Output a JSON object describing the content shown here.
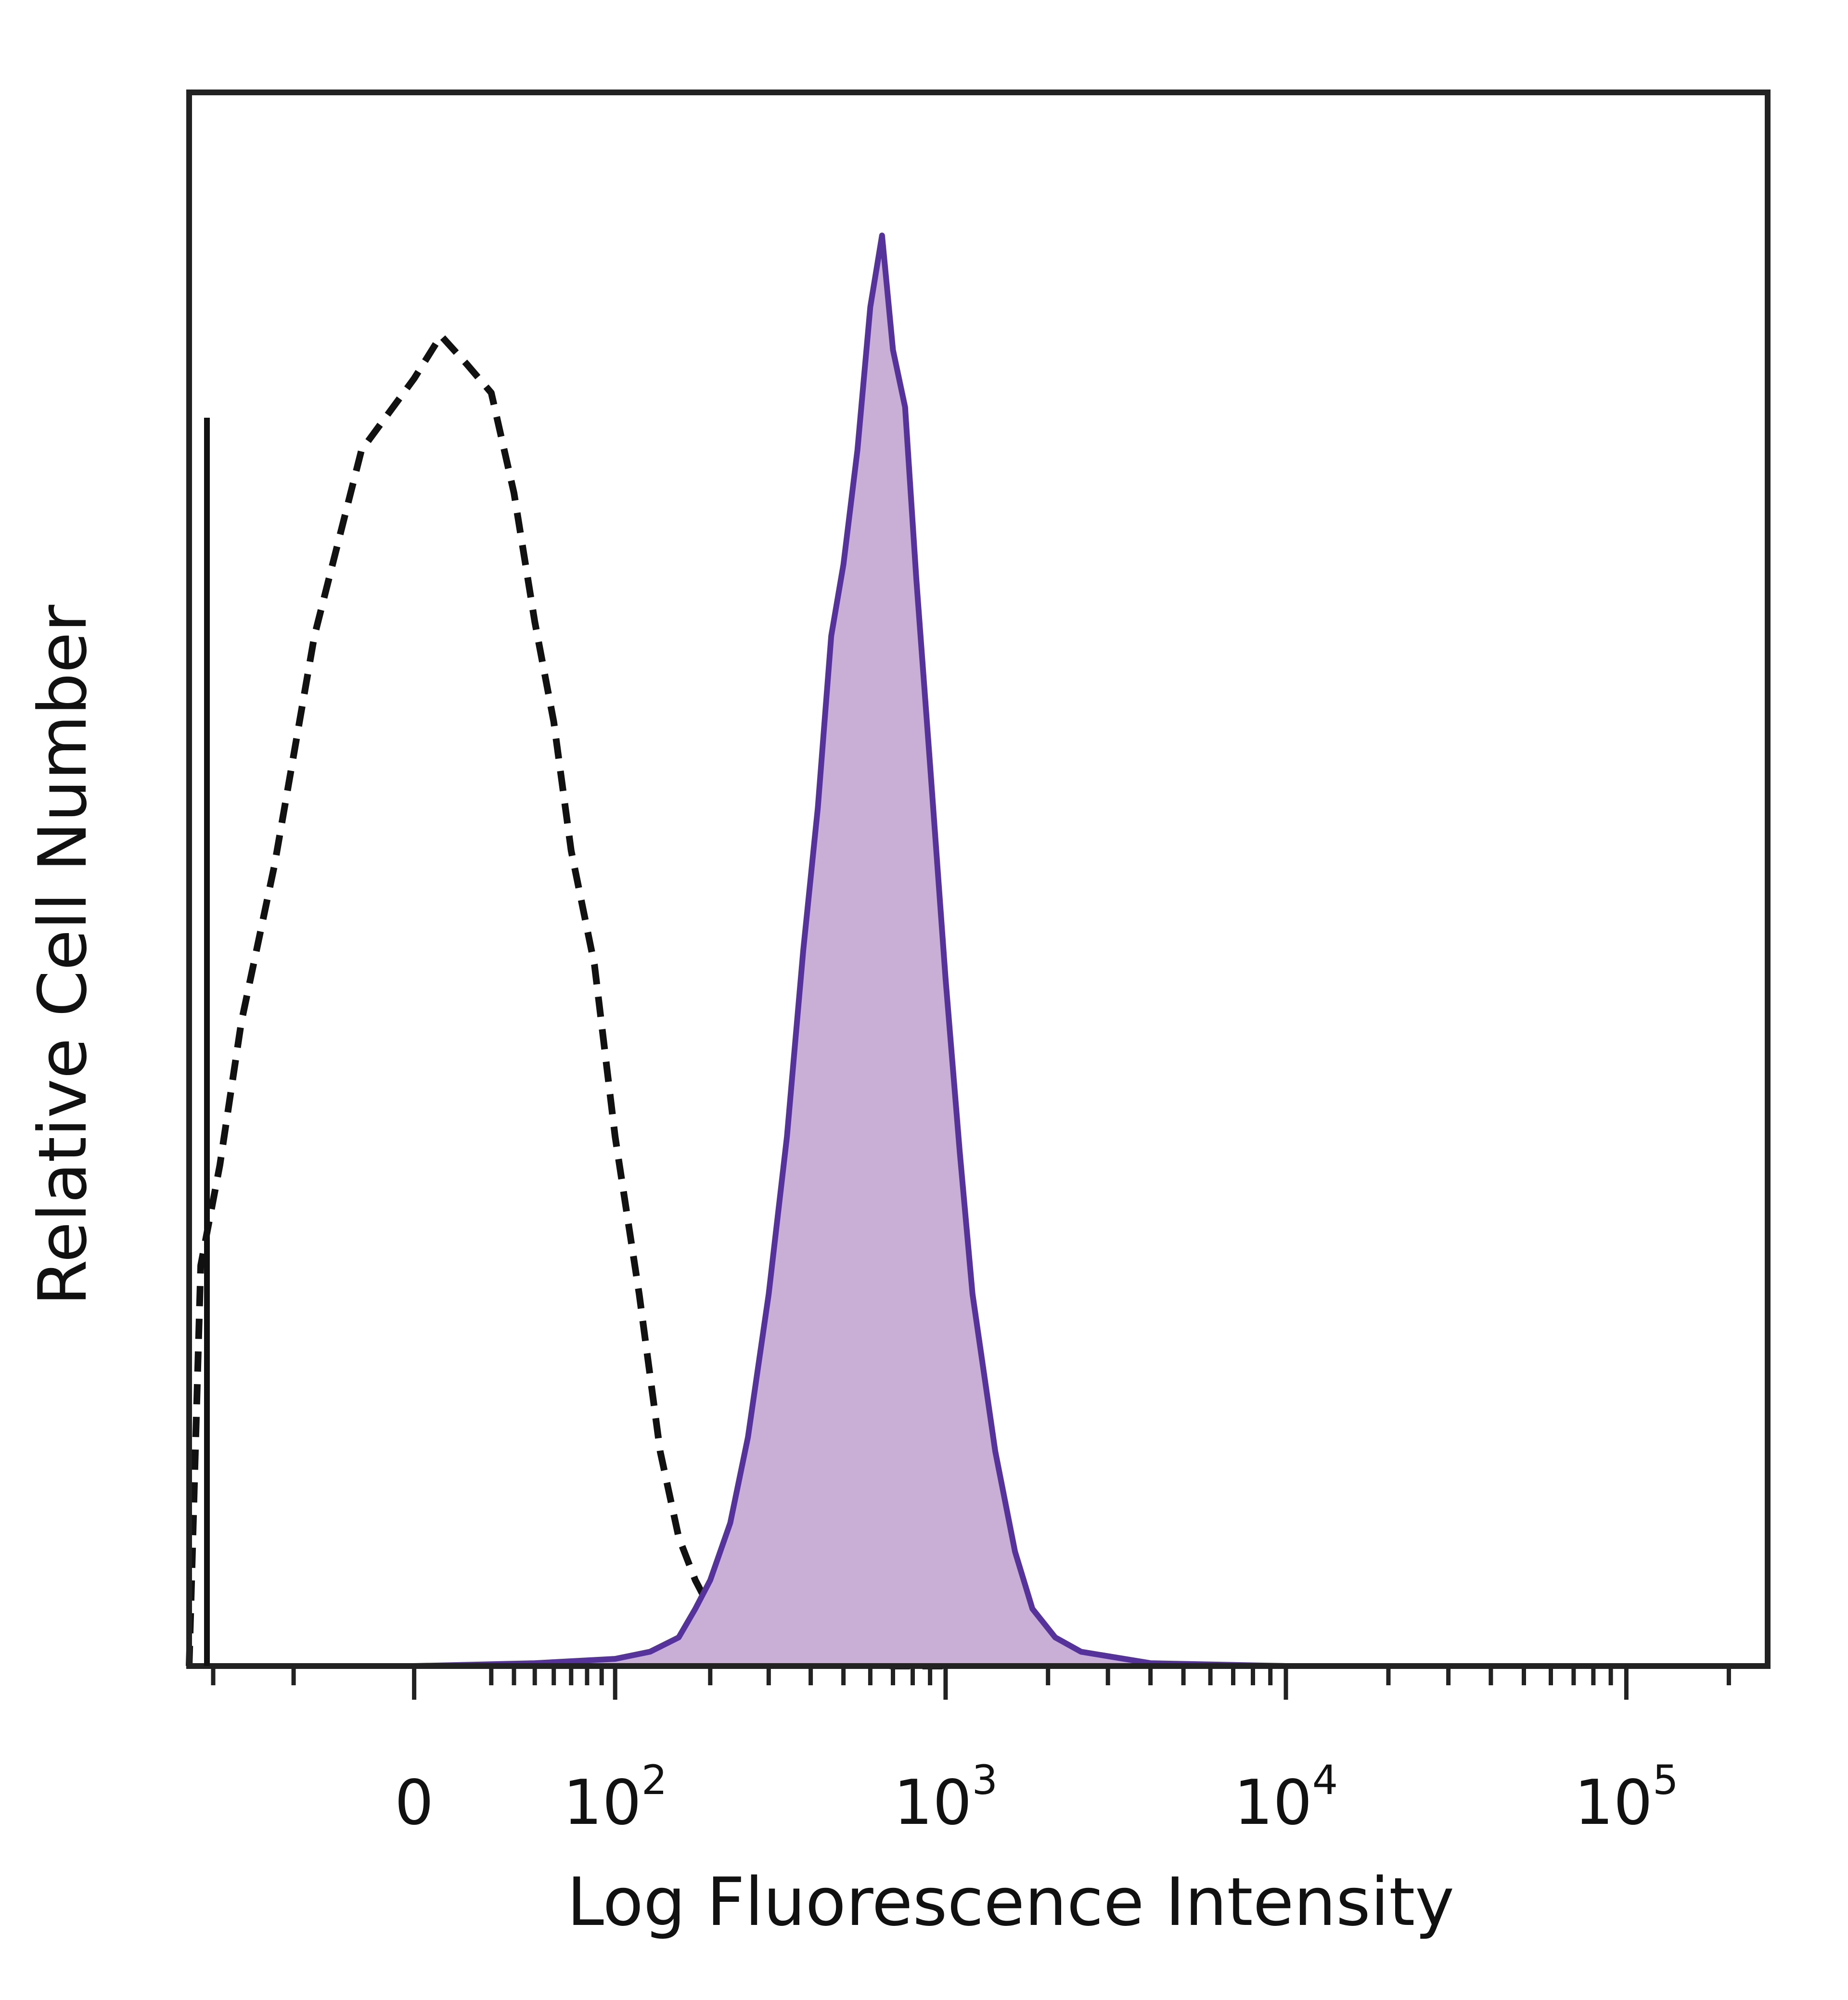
{
  "chart_data": {
    "type": "area",
    "title": "",
    "xlabel": "Log Fluorescence Intensity",
    "ylabel": "Relative Cell Number",
    "x_scale": "biexponential",
    "x_ticks": [
      {
        "value": 0,
        "base": "0",
        "exp": ""
      },
      {
        "value": 100,
        "base": "10",
        "exp": "2"
      },
      {
        "value": 1000,
        "base": "10",
        "exp": "3"
      },
      {
        "value": 10000,
        "base": "10",
        "exp": "4"
      },
      {
        "value": 100000,
        "base": "10",
        "exp": "5"
      }
    ],
    "xlim": [
      -120,
      260000
    ],
    "ylim": [
      0,
      1.1
    ],
    "grid": false,
    "legend": "none",
    "series": [
      {
        "style": "dashed",
        "filled": false,
        "color": "#111111",
        "x": [
          -120,
          -110,
          -95,
          -80,
          -60,
          -40,
          -20,
          0,
          10,
          20,
          30,
          40,
          50,
          60,
          70,
          85,
          100,
          120,
          140,
          160,
          180,
          200,
          230,
          270,
          320,
          400,
          500,
          700,
          1000
        ],
        "y": [
          0.0,
          0.28,
          0.35,
          0.45,
          0.56,
          0.72,
          0.85,
          0.9,
          0.93,
          0.91,
          0.89,
          0.82,
          0.73,
          0.66,
          0.57,
          0.49,
          0.37,
          0.26,
          0.15,
          0.09,
          0.06,
          0.04,
          0.03,
          0.02,
          0.01,
          0.005,
          0.003,
          0.0,
          0.0
        ]
      },
      {
        "style": "solid",
        "filled": true,
        "color": "#56339b",
        "fill": "#c9aed6",
        "x": [
          -120,
          0,
          50,
          100,
          130,
          160,
          180,
          200,
          230,
          260,
          300,
          340,
          380,
          420,
          460,
          500,
          550,
          600,
          650,
          700,
          760,
          820,
          900,
          1000,
          1100,
          1200,
          1400,
          1600,
          1800,
          2100,
          2500,
          4000,
          10000,
          100000,
          260000
        ],
        "y": [
          0.0,
          0.0,
          0.002,
          0.005,
          0.01,
          0.02,
          0.04,
          0.06,
          0.1,
          0.16,
          0.26,
          0.37,
          0.5,
          0.6,
          0.72,
          0.77,
          0.85,
          0.95,
          1.0,
          0.92,
          0.88,
          0.76,
          0.63,
          0.48,
          0.36,
          0.26,
          0.15,
          0.08,
          0.04,
          0.02,
          0.01,
          0.002,
          0.0,
          0.0,
          0.0
        ]
      }
    ]
  }
}
